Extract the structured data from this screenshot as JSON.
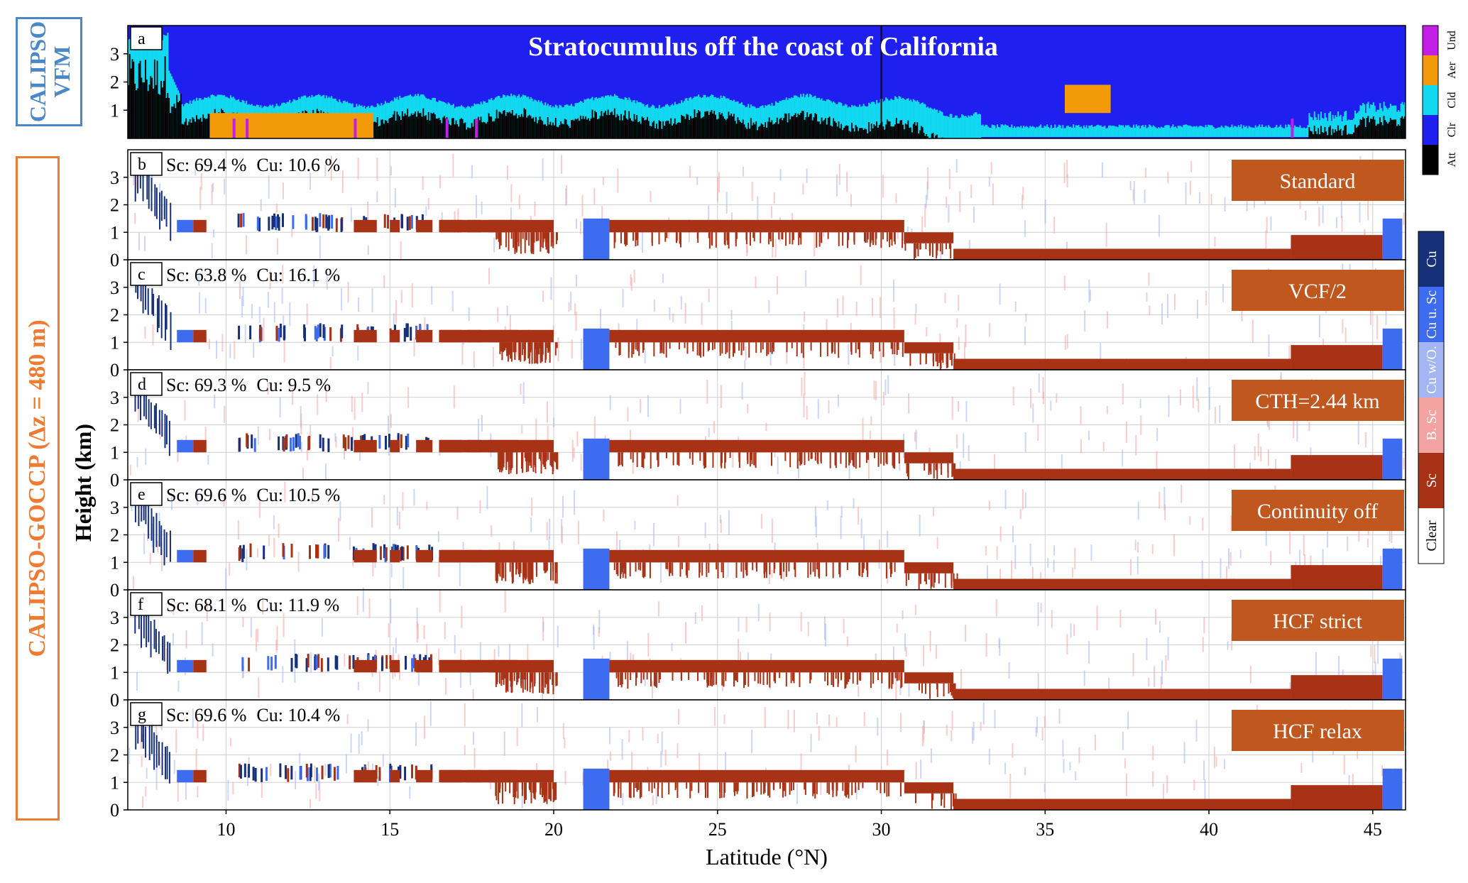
{
  "side_labels": {
    "vfm_line1": "CALIPSO",
    "vfm_line2": "VFM",
    "goccp": "CALIPSO-GOCCP (Δz = 480 m)"
  },
  "colors": {
    "att": "#000000",
    "clr_vfm": "#1f1ff0",
    "cld": "#12d8f0",
    "aer": "#f39a0b",
    "und": "#c21ee6",
    "sc": "#a83216",
    "b_sc": "#f4a3a3",
    "cu_wo": "#a3b6f3",
    "cu_u_sc": "#3d6cf0",
    "cu": "#17307a",
    "clear": "#ffffff",
    "label_box": "#c0571f",
    "vfm_box": "#4a88c7",
    "goccp_box": "#ef7a32"
  },
  "chart_data": [
    {
      "type": "heatmap",
      "panel": "a",
      "title": "Stratocumulus off the coast of California",
      "ylim": [
        0,
        4
      ],
      "yticks": [
        1,
        2,
        3
      ],
      "xlim": [
        7,
        46
      ],
      "legend": [
        "Und",
        "Aer",
        "Cld",
        "Clr",
        "Att"
      ],
      "features": [
        {
          "class": "Cld",
          "lat": [
            7.1,
            8.2
          ],
          "height_km": [
            2.0,
            4.0
          ]
        },
        {
          "class": "Att",
          "lat": [
            7.1,
            8.5
          ],
          "height_km": [
            0,
            2.3
          ]
        },
        {
          "class": "Cld",
          "lat": [
            8.2,
            33.0
          ],
          "top_km": 1.4,
          "base_km": 0.9
        },
        {
          "class": "Aer",
          "lat": [
            9.5,
            14.5
          ],
          "height_km": [
            0,
            0.9
          ]
        },
        {
          "class": "Aer",
          "lat": [
            35.6,
            37.0
          ],
          "height_km": [
            0.9,
            1.9
          ]
        },
        {
          "class": "Cld",
          "lat": [
            43.0,
            45.7
          ],
          "height_km": [
            0.1,
            0.9
          ]
        }
      ]
    },
    {
      "type": "heatmap",
      "panel": "b",
      "scheme": "Standard",
      "sc_label": "Sc: 69.4 %",
      "cu_label": "Cu: 10.6 %",
      "ylim": [
        0,
        4
      ],
      "yticks": [
        0,
        1,
        2,
        3
      ],
      "xlim": [
        7,
        46
      ]
    },
    {
      "type": "heatmap",
      "panel": "c",
      "scheme": "VCF/2",
      "sc_label": "Sc: 63.8 %",
      "cu_label": "Cu: 16.1 %",
      "ylim": [
        0,
        4
      ],
      "yticks": [
        0,
        1,
        2,
        3
      ],
      "xlim": [
        7,
        46
      ]
    },
    {
      "type": "heatmap",
      "panel": "d",
      "scheme": "CTH=2.44 km",
      "sc_label": "Sc: 69.3 %",
      "cu_label": "Cu: 9.5 %",
      "ylim": [
        0,
        4
      ],
      "yticks": [
        0,
        1,
        2,
        3
      ],
      "xlim": [
        7,
        46
      ]
    },
    {
      "type": "heatmap",
      "panel": "e",
      "scheme": "Continuity off",
      "sc_label": "Sc: 69.6 %",
      "cu_label": "Cu: 10.5 %",
      "ylim": [
        0,
        4
      ],
      "yticks": [
        0,
        1,
        2,
        3
      ],
      "xlim": [
        7,
        46
      ]
    },
    {
      "type": "heatmap",
      "panel": "f",
      "scheme": "HCF strict",
      "sc_label": "Sc: 68.1 %",
      "cu_label": "Cu: 11.9 %",
      "ylim": [
        0,
        4
      ],
      "yticks": [
        0,
        1,
        2,
        3
      ],
      "xlim": [
        7,
        46
      ]
    },
    {
      "type": "heatmap",
      "panel": "g",
      "scheme": "HCF relax",
      "sc_label": "Sc: 69.6 %",
      "cu_label": "Cu: 10.4 %",
      "ylim": [
        0,
        4
      ],
      "yticks": [
        0,
        1,
        2,
        3
      ],
      "xlim": [
        7,
        46
      ]
    }
  ],
  "goccp_profile": {
    "comment_free": true,
    "sc_deck": [
      {
        "lat": [
          8.5,
          9.0
        ],
        "base": 1.0,
        "top": 1.45,
        "class": "Cu u. Sc"
      },
      {
        "lat": [
          9.0,
          9.4
        ],
        "base": 1.0,
        "top": 1.45,
        "class": "Sc"
      },
      {
        "lat": [
          16.5,
          20.0
        ],
        "base": 1.0,
        "top": 1.45,
        "class": "Sc"
      },
      {
        "lat": [
          21.7,
          30.7
        ],
        "base": 1.0,
        "top": 1.45,
        "class": "Sc"
      },
      {
        "lat": [
          30.7,
          32.2
        ],
        "base": 0.6,
        "top": 1.0,
        "class": "Sc"
      },
      {
        "lat": [
          32.2,
          42.5
        ],
        "base": 0.0,
        "top": 0.4,
        "class": "Sc"
      },
      {
        "lat": [
          42.5,
          45.3
        ],
        "base": 0.0,
        "top": 0.9,
        "class": "Sc"
      }
    ],
    "cu_patches": [
      {
        "lat": [
          20.9,
          21.7
        ],
        "base": 0.0,
        "top": 1.5,
        "class": "Cu u. Sc"
      },
      {
        "lat": [
          45.3,
          45.9
        ],
        "base": 0.0,
        "top": 1.5,
        "class": "Cu u. Sc"
      }
    ]
  },
  "axes": {
    "xlabel": "Latitude (°N)",
    "ylabel": "Height (km)",
    "xticks": [
      10,
      15,
      20,
      25,
      30,
      35,
      40,
      45
    ]
  },
  "legend_vfm": [
    "Und",
    "Aer",
    "Cld",
    "Clr",
    "Att"
  ],
  "legend_goccp": [
    "Cu",
    "Cu u. Sc",
    "Cu w/O.",
    "B. Sc",
    "Sc",
    "Clear"
  ]
}
